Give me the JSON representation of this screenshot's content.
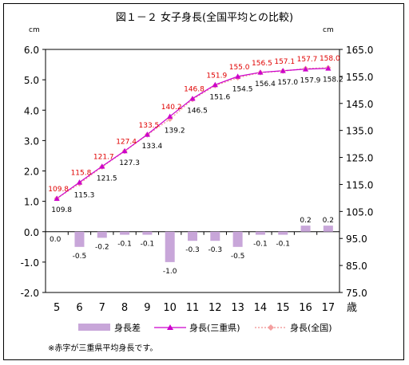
{
  "chart_data": {
    "type": "bar+line",
    "title": "図１－２ 女子身長(全国平均との比較)",
    "left_unit": "cm",
    "right_unit": "cm",
    "xlabel_suffix": "歳",
    "categories": [
      "5",
      "6",
      "7",
      "8",
      "9",
      "10",
      "11",
      "12",
      "13",
      "14",
      "15",
      "16",
      "17"
    ],
    "left_axis": {
      "min": -2.0,
      "max": 6.0,
      "step": 1.0,
      "ticks": [
        "6.0",
        "5.0",
        "4.0",
        "3.0",
        "2.0",
        "1.0",
        "0.0",
        "-1.0",
        "-2.0"
      ]
    },
    "right_axis": {
      "min": 75.0,
      "max": 165.0,
      "step": 10.0,
      "ticks": [
        "165.0",
        "155.0",
        "145.0",
        "135.0",
        "125.0",
        "115.0",
        "105.0",
        "95.0",
        "85.0",
        "75.0"
      ]
    },
    "series": [
      {
        "name": "身長差",
        "kind": "bar",
        "axis": "left",
        "color": "#c8a6d9",
        "values": [
          0.0,
          -0.5,
          -0.2,
          -0.1,
          -0.1,
          -1.0,
          -0.3,
          -0.3,
          -0.5,
          -0.1,
          -0.1,
          0.2,
          0.2
        ],
        "labels": [
          "0.0",
          "-0.5",
          "-0.2",
          "-0.1",
          "-0.1",
          "-1.0",
          "-0.3",
          "-0.3",
          "-0.5",
          "-0.1",
          "-0.1",
          "0.2",
          "0.2"
        ]
      },
      {
        "name": "身長(三重県)",
        "kind": "line",
        "axis": "right",
        "color": "#cc00cc",
        "values": [
          109.8,
          115.8,
          121.7,
          127.4,
          133.5,
          140.2,
          146.8,
          151.9,
          155.0,
          156.5,
          157.1,
          157.7,
          158.0
        ],
        "labels": [
          "109.8",
          "115.8",
          "121.7",
          "127.4",
          "133.5",
          "140.2",
          "146.8",
          "151.9",
          "155.0",
          "156.5",
          "157.1",
          "157.7",
          "158.0"
        ]
      },
      {
        "name": "身長(全国)",
        "kind": "line",
        "axis": "right",
        "color": "#f4a0a0",
        "values": [
          109.8,
          115.3,
          121.5,
          127.3,
          133.4,
          139.2,
          146.5,
          151.6,
          154.5,
          156.4,
          157.0,
          157.9,
          158.2
        ],
        "labels": [
          "109.8",
          "115.3",
          "121.5",
          "127.3",
          "133.4",
          "139.2",
          "146.5",
          "151.6",
          "154.5",
          "156.4",
          "157.0",
          "157.9",
          "158.2"
        ]
      }
    ],
    "legend": {
      "position": "bottom",
      "items": [
        "身長差",
        "身長(三重県)",
        "身長(全国)"
      ]
    },
    "note": "※赤字が三重県平均身長です。",
    "grid": false
  }
}
